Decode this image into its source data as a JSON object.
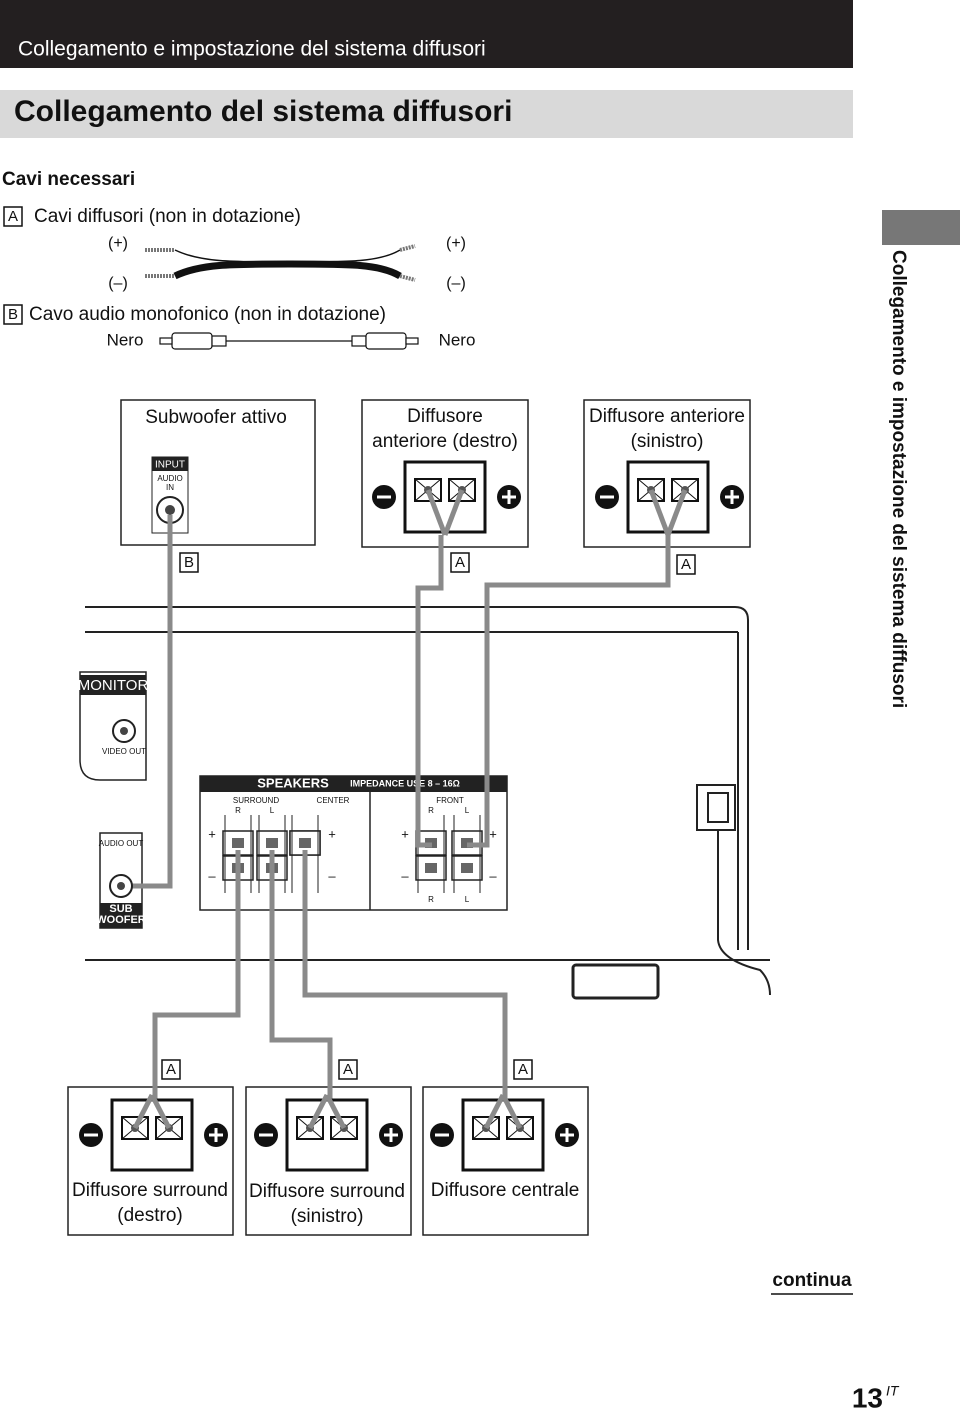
{
  "header": {
    "section": "Collegamento e impostazione del sistema diffusori",
    "title": "Collegamento del sistema diffusori"
  },
  "cables": {
    "heading": "Cavi necessari",
    "a": {
      "letter": "A",
      "label": "Cavi diffusori (non in dotazione)",
      "plus": "(+)",
      "minus": "(–)"
    },
    "b": {
      "letter": "B",
      "label": "Cavo audio monofonico (non in dotazione)",
      "color": "Nero"
    }
  },
  "subwoofer": {
    "title": "Subwoofer attivo",
    "input": "INPUT",
    "audio_in": [
      "AUDIO",
      "IN"
    ],
    "cable": "B"
  },
  "front_right": {
    "title": [
      "Diffusore",
      "anteriore (destro)"
    ],
    "cable": "A"
  },
  "front_left": {
    "title": [
      "Diffusore anteriore",
      "(sinistro)"
    ],
    "cable": "A"
  },
  "receiver": {
    "monitor": "MONITOR",
    "video_out": "VIDEO OUT",
    "audio_out": "AUDIO OUT",
    "sub_woofer": [
      "SUB",
      "WOOFER"
    ],
    "speakers": "SPEAKERS",
    "impedance": "IMPEDANCE USE 8 – 16Ω",
    "surround": "SURROUND",
    "center": "CENTER",
    "front": "FRONT",
    "right": "R",
    "left": "L",
    "plus": "+",
    "minus": "–"
  },
  "surround_right": {
    "title": [
      "Diffusore surround",
      "(destro)"
    ],
    "cable": "A"
  },
  "surround_left": {
    "title": [
      "Diffusore surround",
      "(sinistro)"
    ],
    "cable": "A"
  },
  "center": {
    "title": [
      "Diffusore centrale"
    ],
    "cable": "A"
  },
  "side_tab": "Collegamento e impostazione del sistema diffusori",
  "footer": {
    "continue": "continua",
    "page": "13",
    "suffix": "IT"
  }
}
